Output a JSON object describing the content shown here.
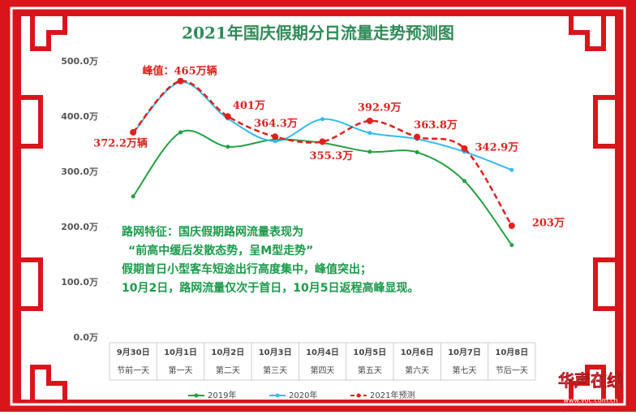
{
  "chart_data": {
    "type": "line",
    "title": "2021年国庆假期分日流量走势预测图",
    "categories": [
      "9月30日",
      "10月1日",
      "10月2日",
      "10月3日",
      "10月4日",
      "10月5日",
      "10月6日",
      "10月7日",
      "10月8日"
    ],
    "day_labels": [
      "节前一天",
      "第一天",
      "第二天",
      "第三天",
      "第四天",
      "第五天",
      "第六天",
      "第七天",
      "节后一天"
    ],
    "series": [
      {
        "name": "2019年",
        "color": "#22a040",
        "line_style": "solid",
        "values": [
          256,
          372,
          346,
          359,
          353,
          337,
          336,
          284,
          168
        ]
      },
      {
        "name": "2020年",
        "color": "#33bbee",
        "line_style": "solid",
        "values": [
          371,
          463,
          397,
          356,
          396,
          371,
          360,
          337,
          304
        ]
      },
      {
        "name": "2021年预测",
        "color": "#e0201b",
        "line_style": "dashed",
        "values": [
          372.2,
          465,
          401,
          364.3,
          355.3,
          392.9,
          363.8,
          342.9,
          203
        ],
        "value_labels": [
          "372.2万辆",
          "峰值：465万辆",
          "401万",
          "364.3万",
          "355.3万",
          "392.9万",
          "363.8万",
          "342.9万",
          "203万"
        ]
      }
    ],
    "ylim": [
      0,
      500
    ],
    "yticks": [
      {
        "value": 0,
        "label": "0.0万"
      },
      {
        "value": 100,
        "label": "100.0万"
      },
      {
        "value": 200,
        "label": "200.0万"
      },
      {
        "value": 300,
        "label": "300.0万"
      },
      {
        "value": 400,
        "label": "400.0万"
      },
      {
        "value": 500,
        "label": "500.0万"
      }
    ],
    "annotation": [
      "路网特征：国庆假期路网流量表现为",
      "“前高中缓后发散态势，呈M型走势”",
      "假期首日小型客车短途出行高度集中，峰值突出；",
      "10月2日，路网流量仅次于首日，10月5日返程高峰显现。"
    ],
    "legend": "bottom",
    "watermark": [
      "华声在线",
      "www.voc.com.cn"
    ]
  }
}
